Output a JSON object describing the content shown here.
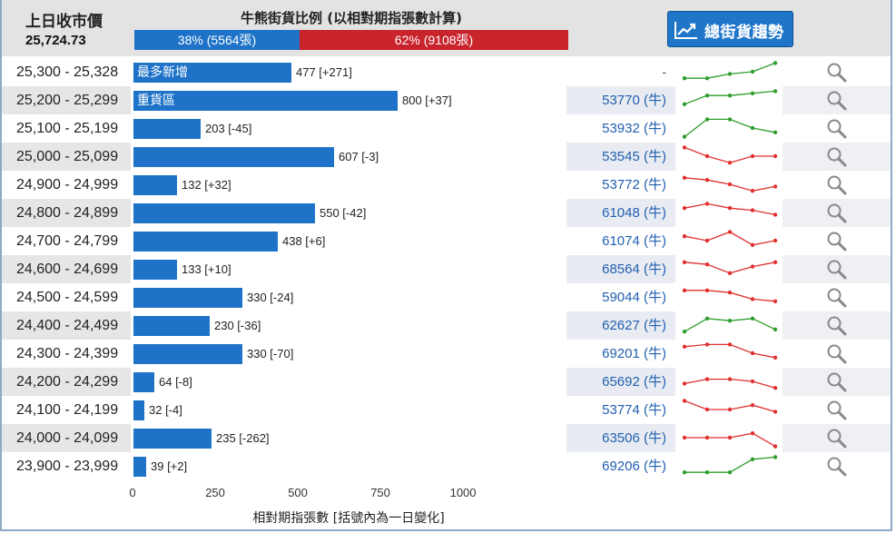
{
  "header": {
    "prev_close_label": "上日收市價",
    "prev_close_value": "25,724.73",
    "ratio_title": "牛熊街貨比例 (以相對期指張數計算)",
    "bull_label": "38% (5564張)",
    "bull_pct": 38,
    "bear_label": "62% (9108張)",
    "bear_pct": 62,
    "trend_button": "總街貨趨勢",
    "trend_icon": "line-chart-icon"
  },
  "colors": {
    "bar": "#1e73c8",
    "bull": "#1e73c8",
    "bear": "#c9232b",
    "spark_up": "#2e9e2e",
    "spark_down": "#e03030",
    "strike_text": "#2360b0"
  },
  "chart_data": {
    "type": "bar",
    "orientation": "horizontal",
    "xlabel": "相對期指張數 [括號內為一日變化]",
    "xlim": [
      0,
      1000
    ],
    "xticks": [
      0,
      250,
      500,
      750,
      1000
    ],
    "categories": [
      "25,300 - 25,328",
      "25,200 - 25,299",
      "25,100 - 25,199",
      "25,000 - 25,099",
      "24,900 - 24,999",
      "24,800 - 24,899",
      "24,700 - 24,799",
      "24,600 - 24,699",
      "24,500 - 24,599",
      "24,400 - 24,499",
      "24,300 - 24,399",
      "24,200 - 24,299",
      "24,100 - 24,199",
      "24,000 - 24,099",
      "23,900 - 23,999"
    ],
    "values": [
      477,
      800,
      203,
      607,
      132,
      550,
      438,
      133,
      330,
      230,
      330,
      64,
      32,
      235,
      39
    ],
    "changes": [
      "[+271]",
      "[+37]",
      "[-45]",
      "[-3]",
      "[+32]",
      "[-42]",
      "[+6]",
      "[+10]",
      "[-24]",
      "[-36]",
      "[-70]",
      "[-8]",
      "[-4]",
      "[-262]",
      "[+2]"
    ],
    "bar_tags": [
      "最多新增",
      "重貨區",
      "",
      "",
      "",
      "",
      "",
      "",
      "",
      "",
      "",
      "",
      "",
      "",
      ""
    ]
  },
  "rows": [
    {
      "range": "25,300 - 25,328",
      "value_text": "477 [+271]",
      "strike": "-",
      "trend": "up",
      "spark": [
        2,
        2,
        4,
        5,
        9
      ]
    },
    {
      "range": "25,200 - 25,299",
      "value_text": "800 [+37]",
      "strike": "53770 (牛)",
      "trend": "up",
      "spark": [
        3,
        7,
        7,
        8,
        9
      ]
    },
    {
      "range": "25,100 - 25,199",
      "value_text": "203 [-45]",
      "strike": "53932 (牛)",
      "trend": "up",
      "spark": [
        1,
        9,
        9,
        5,
        3
      ]
    },
    {
      "range": "25,000 - 25,099",
      "value_text": "607 [-3]",
      "strike": "53545 (牛)",
      "trend": "down",
      "spark": [
        9,
        5,
        2,
        5,
        5
      ]
    },
    {
      "range": "24,900 - 24,999",
      "value_text": "132 [+32]",
      "strike": "53772 (牛)",
      "trend": "down",
      "spark": [
        8,
        7,
        5,
        2,
        4
      ]
    },
    {
      "range": "24,800 - 24,899",
      "value_text": "550 [-42]",
      "strike": "61048 (牛)",
      "trend": "down",
      "spark": [
        7,
        9,
        7,
        6,
        4
      ]
    },
    {
      "range": "24,700 - 24,799",
      "value_text": "438 [+6]",
      "strike": "61074 (牛)",
      "trend": "down",
      "spark": [
        7,
        5,
        9,
        3,
        5
      ]
    },
    {
      "range": "24,600 - 24,699",
      "value_text": "133 [+10]",
      "strike": "68564 (牛)",
      "trend": "down",
      "spark": [
        8,
        7,
        3,
        6,
        8
      ]
    },
    {
      "range": "24,500 - 24,599",
      "value_text": "330 [-24]",
      "strike": "59044 (牛)",
      "trend": "down",
      "spark": [
        8,
        8,
        7,
        4,
        3
      ]
    },
    {
      "range": "24,400 - 24,499",
      "value_text": "230 [-36]",
      "strike": "62627 (牛)",
      "trend": "up",
      "spark": [
        2,
        8,
        7,
        8,
        3
      ]
    },
    {
      "range": "24,300 - 24,399",
      "value_text": "330 [-70]",
      "strike": "69201 (牛)",
      "trend": "down",
      "spark": [
        8,
        9,
        9,
        5,
        3
      ]
    },
    {
      "range": "24,200 - 24,299",
      "value_text": "64 [-8]",
      "strike": "65692 (牛)",
      "trend": "down",
      "spark": [
        4,
        6,
        6,
        5,
        2
      ]
    },
    {
      "range": "24,100 - 24,199",
      "value_text": "32 [-4]",
      "strike": "53774 (牛)",
      "trend": "down",
      "spark": [
        9,
        5,
        5,
        7,
        4
      ]
    },
    {
      "range": "24,000 - 24,099",
      "value_text": "235 [-262]",
      "strike": "63506 (牛)",
      "trend": "down",
      "spark": [
        5,
        5,
        5,
        7,
        1
      ]
    },
    {
      "range": "23,900 - 23,999",
      "value_text": "39 [+2]",
      "strike": "69206 (牛)",
      "trend": "up",
      "spark": [
        2,
        2,
        2,
        8,
        9
      ]
    }
  ],
  "icons": {
    "zoom": "magnifier-icon"
  }
}
